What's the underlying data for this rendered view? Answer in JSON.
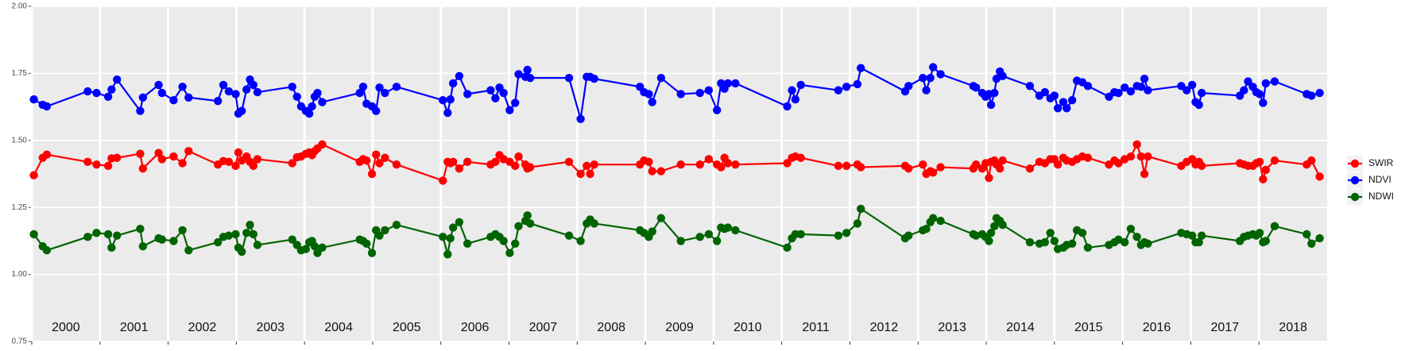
{
  "chart_data": {
    "type": "line",
    "x": [
      2000.03,
      2000.16,
      2000.22,
      2000.82,
      2000.95,
      2001.12,
      2001.17,
      2001.25,
      2001.59,
      2001.63,
      2001.86,
      2001.91,
      2002.08,
      2002.21,
      2002.3,
      2002.73,
      2002.81,
      2002.89,
      2002.99,
      2003.03,
      2003.08,
      2003.15,
      2003.2,
      2003.25,
      2003.31,
      2003.82,
      2003.89,
      2003.95,
      2004.02,
      2004.07,
      2004.11,
      2004.15,
      2004.19,
      2004.26,
      2004.81,
      2004.86,
      2004.91,
      2004.99,
      2005.05,
      2005.1,
      2005.18,
      2005.35,
      2006.03,
      2006.1,
      2006.14,
      2006.18,
      2006.27,
      2006.39,
      2006.73,
      2006.8,
      2006.86,
      2006.92,
      2007.01,
      2007.09,
      2007.14,
      2007.24,
      2007.27,
      2007.31,
      2007.88,
      2008.05,
      2008.14,
      2008.19,
      2008.25,
      2008.92,
      2008.98,
      2009.05,
      2009.1,
      2009.23,
      2009.52,
      2009.8,
      2009.93,
      2010.05,
      2010.11,
      2010.16,
      2010.21,
      2010.32,
      2011.08,
      2011.15,
      2011.2,
      2011.28,
      2011.83,
      2011.95,
      2012.11,
      2012.16,
      2012.81,
      2012.86,
      2013.07,
      2013.12,
      2013.18,
      2013.22,
      2013.33,
      2013.81,
      2013.85,
      2013.94,
      2013.99,
      2014.04,
      2014.07,
      2014.12,
      2014.15,
      2014.2,
      2014.24,
      2014.64,
      2014.78,
      2014.86,
      2014.94,
      2015.0,
      2015.05,
      2015.13,
      2015.18,
      2015.26,
      2015.33,
      2015.41,
      2015.49,
      2015.8,
      2015.88,
      2015.94,
      2016.03,
      2016.12,
      2016.21,
      2016.27,
      2016.32,
      2016.37,
      2016.86,
      2016.94,
      2017.02,
      2017.07,
      2017.12,
      2017.16,
      2017.72,
      2017.78,
      2017.84,
      2017.91,
      2017.96,
      2018.01,
      2018.06,
      2018.1,
      2018.23,
      2018.7,
      2018.77,
      2018.89
    ],
    "series": [
      {
        "name": "SWIR",
        "color": "#ff0000",
        "values": [
          1.37,
          1.435,
          1.447,
          1.42,
          1.41,
          1.405,
          1.433,
          1.435,
          1.45,
          1.395,
          1.453,
          1.43,
          1.44,
          1.415,
          1.46,
          1.41,
          1.423,
          1.42,
          1.405,
          1.455,
          1.425,
          1.44,
          1.42,
          1.405,
          1.43,
          1.415,
          1.437,
          1.44,
          1.45,
          1.455,
          1.445,
          1.46,
          1.47,
          1.485,
          1.42,
          1.43,
          1.425,
          1.375,
          1.447,
          1.415,
          1.435,
          1.41,
          1.35,
          1.42,
          1.415,
          1.42,
          1.395,
          1.42,
          1.41,
          1.42,
          1.445,
          1.43,
          1.42,
          1.405,
          1.44,
          1.41,
          1.395,
          1.4,
          1.42,
          1.375,
          1.405,
          1.375,
          1.41,
          1.41,
          1.425,
          1.42,
          1.385,
          1.385,
          1.41,
          1.41,
          1.43,
          1.41,
          1.4,
          1.435,
          1.415,
          1.41,
          1.415,
          1.435,
          1.44,
          1.435,
          1.405,
          1.405,
          1.41,
          1.4,
          1.405,
          1.395,
          1.41,
          1.375,
          1.385,
          1.38,
          1.4,
          1.395,
          1.41,
          1.395,
          1.415,
          1.36,
          1.42,
          1.425,
          1.41,
          1.395,
          1.425,
          1.395,
          1.42,
          1.415,
          1.43,
          1.43,
          1.41,
          1.435,
          1.425,
          1.42,
          1.43,
          1.44,
          1.435,
          1.41,
          1.425,
          1.415,
          1.43,
          1.44,
          1.485,
          1.44,
          1.375,
          1.44,
          1.405,
          1.42,
          1.43,
          1.41,
          1.42,
          1.405,
          1.415,
          1.41,
          1.405,
          1.405,
          1.415,
          1.42,
          1.355,
          1.39,
          1.425,
          1.41,
          1.425,
          1.365
        ]
      },
      {
        "name": "NDVI",
        "color": "#0000ff",
        "values": [
          1.653,
          1.633,
          1.627,
          1.683,
          1.677,
          1.663,
          1.69,
          1.727,
          1.61,
          1.66,
          1.707,
          1.677,
          1.65,
          1.7,
          1.66,
          1.647,
          1.707,
          1.683,
          1.673,
          1.6,
          1.61,
          1.69,
          1.727,
          1.707,
          1.68,
          1.7,
          1.663,
          1.627,
          1.61,
          1.6,
          1.627,
          1.663,
          1.677,
          1.643,
          1.677,
          1.7,
          1.637,
          1.627,
          1.61,
          1.697,
          1.677,
          1.7,
          1.65,
          1.603,
          1.653,
          1.713,
          1.74,
          1.673,
          1.687,
          1.657,
          1.697,
          1.677,
          1.613,
          1.64,
          1.747,
          1.737,
          1.763,
          1.733,
          1.733,
          1.58,
          1.737,
          1.737,
          1.73,
          1.7,
          1.68,
          1.673,
          1.643,
          1.733,
          1.673,
          1.677,
          1.687,
          1.613,
          1.713,
          1.693,
          1.713,
          1.713,
          1.627,
          1.687,
          1.653,
          1.707,
          1.687,
          1.7,
          1.71,
          1.77,
          1.683,
          1.703,
          1.733,
          1.687,
          1.733,
          1.773,
          1.747,
          1.703,
          1.697,
          1.677,
          1.663,
          1.673,
          1.633,
          1.677,
          1.73,
          1.757,
          1.74,
          1.703,
          1.667,
          1.68,
          1.657,
          1.667,
          1.62,
          1.643,
          1.62,
          1.65,
          1.723,
          1.717,
          1.703,
          1.663,
          1.68,
          1.677,
          1.697,
          1.683,
          1.703,
          1.7,
          1.73,
          1.687,
          1.703,
          1.687,
          1.707,
          1.643,
          1.633,
          1.677,
          1.667,
          1.687,
          1.72,
          1.7,
          1.68,
          1.673,
          1.64,
          1.713,
          1.72,
          1.673,
          1.667,
          1.677
        ]
      },
      {
        "name": "NDWI",
        "color": "#006400",
        "values": [
          1.15,
          1.105,
          1.09,
          1.14,
          1.155,
          1.15,
          1.1,
          1.145,
          1.17,
          1.105,
          1.135,
          1.13,
          1.125,
          1.165,
          1.09,
          1.12,
          1.14,
          1.145,
          1.15,
          1.1,
          1.085,
          1.155,
          1.185,
          1.15,
          1.11,
          1.13,
          1.11,
          1.09,
          1.095,
          1.12,
          1.125,
          1.105,
          1.08,
          1.1,
          1.13,
          1.125,
          1.115,
          1.08,
          1.165,
          1.145,
          1.165,
          1.185,
          1.14,
          1.075,
          1.135,
          1.175,
          1.195,
          1.115,
          1.14,
          1.15,
          1.14,
          1.125,
          1.08,
          1.115,
          1.18,
          1.2,
          1.22,
          1.19,
          1.145,
          1.125,
          1.19,
          1.205,
          1.19,
          1.165,
          1.155,
          1.14,
          1.16,
          1.21,
          1.125,
          1.14,
          1.15,
          1.125,
          1.175,
          1.17,
          1.175,
          1.165,
          1.1,
          1.135,
          1.15,
          1.15,
          1.145,
          1.155,
          1.19,
          1.245,
          1.135,
          1.145,
          1.165,
          1.17,
          1.195,
          1.21,
          1.2,
          1.15,
          1.145,
          1.15,
          1.14,
          1.125,
          1.155,
          1.18,
          1.21,
          1.2,
          1.185,
          1.12,
          1.115,
          1.12,
          1.155,
          1.125,
          1.095,
          1.1,
          1.11,
          1.115,
          1.165,
          1.155,
          1.1,
          1.11,
          1.12,
          1.13,
          1.12,
          1.17,
          1.14,
          1.11,
          1.12,
          1.115,
          1.155,
          1.15,
          1.145,
          1.12,
          1.12,
          1.145,
          1.125,
          1.14,
          1.145,
          1.15,
          1.145,
          1.155,
          1.12,
          1.125,
          1.18,
          1.15,
          1.115,
          1.135
        ]
      }
    ],
    "xlim": [
      2000,
      2019
    ],
    "xticks": [
      2000,
      2001,
      2002,
      2003,
      2004,
      2005,
      2006,
      2007,
      2008,
      2009,
      2010,
      2011,
      2012,
      2013,
      2014,
      2015,
      2016,
      2017,
      2018
    ],
    "ylim": [
      0.75,
      2.0
    ],
    "yticks": [
      {
        "value": 0.75,
        "label": "0.75"
      },
      {
        "value": 1.0,
        "label": "1.00"
      },
      {
        "value": 1.25,
        "label": "1.25"
      },
      {
        "value": 1.5,
        "label": "1.50"
      },
      {
        "value": 1.75,
        "label": "1.75"
      },
      {
        "value": 2.0,
        "label": "2.00"
      }
    ],
    "grid": true,
    "legend": "right"
  }
}
